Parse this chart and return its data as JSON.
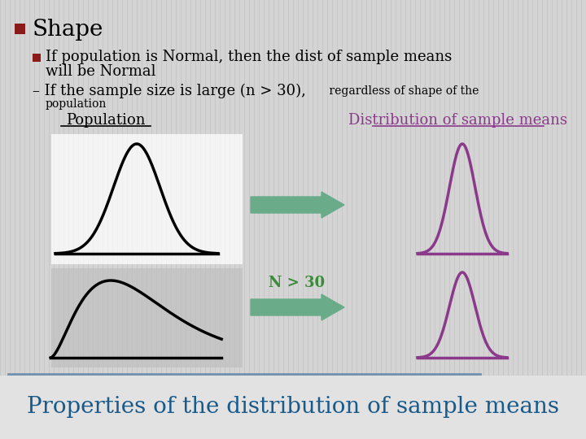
{
  "background_color": "#d4d4d4",
  "main_bullet_color": "#8b1a1a",
  "sub_bullet_color": "#8b1a1a",
  "title_text": "Shape",
  "bullet1_line1": "If population is Normal, then the dist of sample means",
  "bullet1_line2": "will be Normal",
  "bullet2_main": "– If the sample size is large (n > 30),",
  "bullet2_small": " regardless of shape of the",
  "bullet2_small2": "population",
  "pop_label": "Population",
  "dist_label": "Distribution of sample means",
  "arrow2_label": "N > 30",
  "arrow_color": "#6aab8a",
  "curve_normal_color": "#000000",
  "curve_skew_color": "#000000",
  "dist_curve_color": "#8b3a8b",
  "pop_label_color": "#000000",
  "dist_label_color": "#8b3a8b",
  "n30_label_color": "#3a8b3a",
  "footer_text": "Properties of the distribution of sample means",
  "footer_color": "#1a5a8b"
}
